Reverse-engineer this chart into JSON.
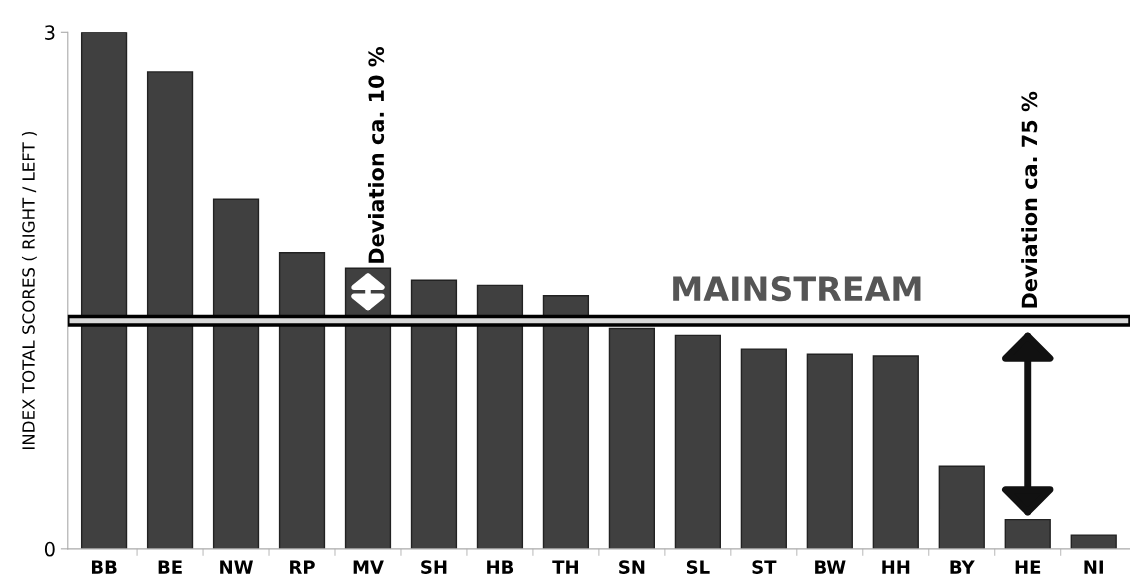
{
  "chart_data": {
    "type": "bar",
    "ylabel": "INDEX TOTAL SCORES ( RIGHT / LEFT )",
    "categories": [
      "BB",
      "BE",
      "NW",
      "RP",
      "MV",
      "SH",
      "HB",
      "TH",
      "SN",
      "SL",
      "ST",
      "BW",
      "HH",
      "BY",
      "HE",
      "NI"
    ],
    "values": [
      3.0,
      2.77,
      2.03,
      1.72,
      1.63,
      1.56,
      1.53,
      1.47,
      1.28,
      1.24,
      1.16,
      1.13,
      1.12,
      0.48,
      0.17,
      0.08
    ],
    "color": "#404040",
    "ylim": [
      0,
      3
    ],
    "yticks": [
      0,
      3
    ],
    "grid": false,
    "bands": [
      {
        "axis": "y",
        "from": 1.3,
        "to": 1.35,
        "label": "MAINSTREAM",
        "color": "#d9d9d9"
      }
    ],
    "annotations": [
      {
        "text": "Deviation ca. 10 %",
        "x": "MV",
        "y": 1.63
      },
      {
        "text": "Deviation ca. 75 %",
        "x": "HE",
        "y": 1.32
      }
    ]
  }
}
